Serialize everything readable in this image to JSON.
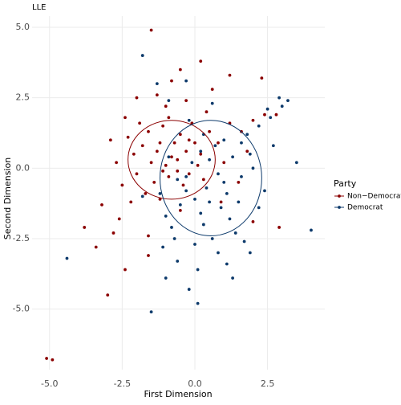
{
  "chart_data": {
    "type": "scatter",
    "title": "LLE",
    "x_label": "First Dimension",
    "y_label": "Second Dimension",
    "legend_title": "Party",
    "legend_position": "right",
    "grid": true,
    "xlim": [
      -5.6,
      4.47
    ],
    "ylim": [
      -7.15,
      5.4
    ],
    "xticks": [
      {
        "value": -5,
        "label": "-5.0"
      },
      {
        "value": -2.5,
        "label": "-2.5"
      },
      {
        "value": 0,
        "label": "0.0"
      },
      {
        "value": 2.5,
        "label": "2.5"
      }
    ],
    "yticks": [
      {
        "value": 5,
        "label": "5.0"
      },
      {
        "value": 2.5,
        "label": "2.5"
      },
      {
        "value": 0,
        "label": "0.0"
      },
      {
        "value": -2.5,
        "label": "-2.5"
      },
      {
        "value": -5,
        "label": "-5.0"
      }
    ],
    "series": [
      {
        "name": "Non−Democrat",
        "color": "#8b0000",
        "x": [
          -0.8,
          -1.2,
          -0.5,
          -1.5,
          -0.9,
          -0.3,
          -1.8,
          -1.1,
          -0.6,
          -1.4,
          -2.1,
          -0.2,
          0.2,
          -0.7,
          -1.0,
          -1.6,
          -2.0,
          0.5,
          -0.4,
          -1.3,
          -0.9,
          -1.7,
          0.1,
          -2.3,
          -0.1,
          0.8,
          1.2,
          1.6,
          2.0,
          2.4,
          2.8,
          -1.9,
          -2.5,
          -2.7,
          -2.2,
          -1.0,
          -0.3,
          0.6,
          -1.5,
          -2.0,
          -0.8,
          1.2,
          2.3,
          -3.2,
          -2.8,
          -3.8,
          -3.0,
          -2.4,
          -5.1,
          -4.9,
          -1.6,
          -2.6,
          1.5,
          2.0,
          2.9,
          0.9,
          -0.5,
          0.3,
          -1.2,
          -0.6,
          -1.1,
          0.0,
          0.4,
          -2.9,
          -2.4,
          1.0,
          -0.2,
          -1.3,
          0.2,
          -0.5,
          1.8,
          -1.6,
          -3.4
        ],
        "values": [
          0.4,
          0.9,
          1.2,
          0.2,
          -0.3,
          0.6,
          0.8,
          1.5,
          -0.1,
          -0.5,
          0.5,
          1.0,
          0.5,
          0.9,
          0.1,
          1.3,
          -0.2,
          1.3,
          -0.6,
          0.6,
          1.8,
          -0.9,
          0.1,
          1.1,
          1.6,
          0.9,
          1.6,
          1.3,
          1.7,
          1.9,
          1.9,
          1.6,
          -0.6,
          0.2,
          -1.2,
          2.2,
          2.4,
          2.8,
          4.9,
          2.5,
          3.1,
          3.3,
          3.2,
          -1.3,
          -2.3,
          -2.1,
          -4.5,
          -3.6,
          -6.75,
          -6.8,
          -2.4,
          -1.8,
          -0.5,
          -1.9,
          -2.1,
          -1.2,
          -1.5,
          -0.4,
          -1.1,
          0.3,
          -0.1,
          0.9,
          2.0,
          1.0,
          1.8,
          0.2,
          -0.2,
          2.6,
          3.8,
          3.5,
          0.6,
          -3.1,
          -2.8
        ],
        "ellipse": {
          "cx": -0.8,
          "cy": 0.3,
          "rx": 1.5,
          "ry": 1.4
        }
      },
      {
        "name": "Democrat",
        "color": "#0d3a6b",
        "x": [
          0.4,
          0.8,
          0.0,
          1.1,
          0.5,
          -0.3,
          1.3,
          0.2,
          0.9,
          -0.5,
          1.6,
          0.7,
          -0.1,
          1.9,
          0.3,
          1.2,
          -0.8,
          0.6,
          1.4,
          0.0,
          -0.6,
          1.0,
          1.8,
          2.2,
          2.6,
          2.9,
          3.2,
          3.0,
          2.5,
          2.0,
          1.5,
          -1.0,
          -1.2,
          -0.9,
          0.3,
          -0.2,
          0.8,
          1.1,
          0.1,
          -0.6,
          -1.1,
          1.7,
          1.9,
          -0.2,
          0.1,
          1.3,
          -1.5,
          -4.4,
          -1.0,
          3.5,
          4.0,
          2.4,
          -1.8,
          -0.3,
          -1.3,
          -0.9,
          0.6,
          -1.8,
          0.5,
          1.0,
          -0.3,
          0.2,
          2.2,
          2.7,
          -0.7,
          1.6
        ],
        "values": [
          -0.7,
          -0.2,
          -1.1,
          -0.9,
          0.3,
          -0.8,
          0.4,
          -1.6,
          -1.4,
          -1.3,
          -0.3,
          0.8,
          0.2,
          0.5,
          -2.0,
          -1.8,
          -2.1,
          -2.5,
          -2.3,
          -2.7,
          -0.4,
          1.0,
          1.2,
          1.5,
          1.8,
          2.5,
          2.4,
          2.2,
          2.1,
          0.0,
          -1.2,
          -1.7,
          -0.9,
          0.4,
          1.2,
          1.7,
          -3.0,
          -3.4,
          -3.6,
          -3.3,
          -2.8,
          -2.6,
          -3.0,
          -4.3,
          -4.8,
          -3.9,
          -5.1,
          -3.2,
          -3.9,
          0.2,
          -2.2,
          -0.8,
          4.0,
          3.1,
          3.0,
          2.4,
          2.3,
          -1.0,
          -1.2,
          -0.5,
          -0.3,
          0.6,
          -1.4,
          0.8,
          -2.5,
          0.9
        ],
        "ellipse": {
          "cx": 0.55,
          "cy": -0.35,
          "rx": 1.75,
          "ry": 2.05
        }
      }
    ]
  }
}
